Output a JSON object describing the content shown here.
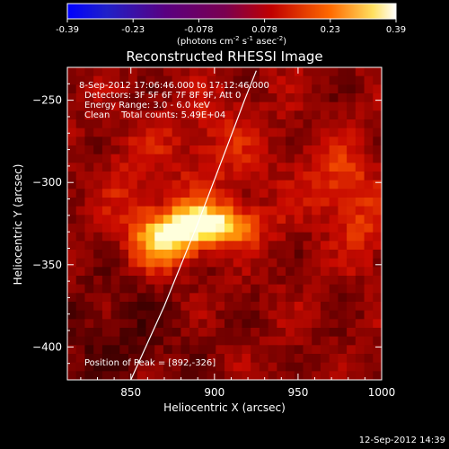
{
  "chart_data": {
    "type": "heatmap",
    "title": "Reconstructed RHESSI Image",
    "xlabel": "Heliocentric X (arcsec)",
    "ylabel": "Heliocentric Y (arcsec)",
    "xlim": [
      812,
      1000
    ],
    "ylim": [
      -420,
      -230
    ],
    "xticks": [
      850,
      900,
      950,
      1000
    ],
    "yticks": [
      -250,
      -300,
      -350,
      -400
    ],
    "colorbar": {
      "min": -0.39,
      "max": 0.39,
      "tick_labels": [
        "-0.39",
        "-0.23",
        "-0.078",
        "0.078",
        "0.23",
        "0.39"
      ],
      "label_parts": [
        "(photons cm",
        "-2",
        " s",
        "-1",
        " asec",
        "-2",
        ")"
      ]
    },
    "info_lines": [
      "8-Sep-2012 17:06:46.000 to 17:12:46.000",
      "Detectors: 3F 5F 6F 7F 8F 9F, Att 0",
      "Energy Range: 3.0 - 6.0 keV",
      "Clean    Total counts: 5.49E+04"
    ],
    "peak_text": "Position of Peak = [892,-326]",
    "peak": [
      892,
      -326
    ],
    "limb_curve": [
      [
        850,
        -420
      ],
      [
        870,
        -375
      ],
      [
        890,
        -325
      ],
      [
        905,
        -285
      ],
      [
        918,
        -250
      ],
      [
        925,
        -232
      ]
    ],
    "sources": [
      {
        "x": 892,
        "y": -326,
        "amp": 1.0,
        "sx": 22,
        "sy": 9
      },
      {
        "x": 870,
        "y": -340,
        "amp": 0.55,
        "sx": 14,
        "sy": 10
      },
      {
        "x": 975,
        "y": -300,
        "amp": 0.35,
        "sx": 15,
        "sy": 18
      },
      {
        "x": 990,
        "y": -330,
        "amp": 0.25,
        "sx": 10,
        "sy": 14
      },
      {
        "x": 900,
        "y": -280,
        "amp": 0.22,
        "sx": 25,
        "sy": 25
      },
      {
        "x": 850,
        "y": -300,
        "amp": 0.2,
        "sx": 12,
        "sy": 20
      }
    ]
  },
  "footer": {
    "timestamp": "12-Sep-2012 14:39"
  }
}
